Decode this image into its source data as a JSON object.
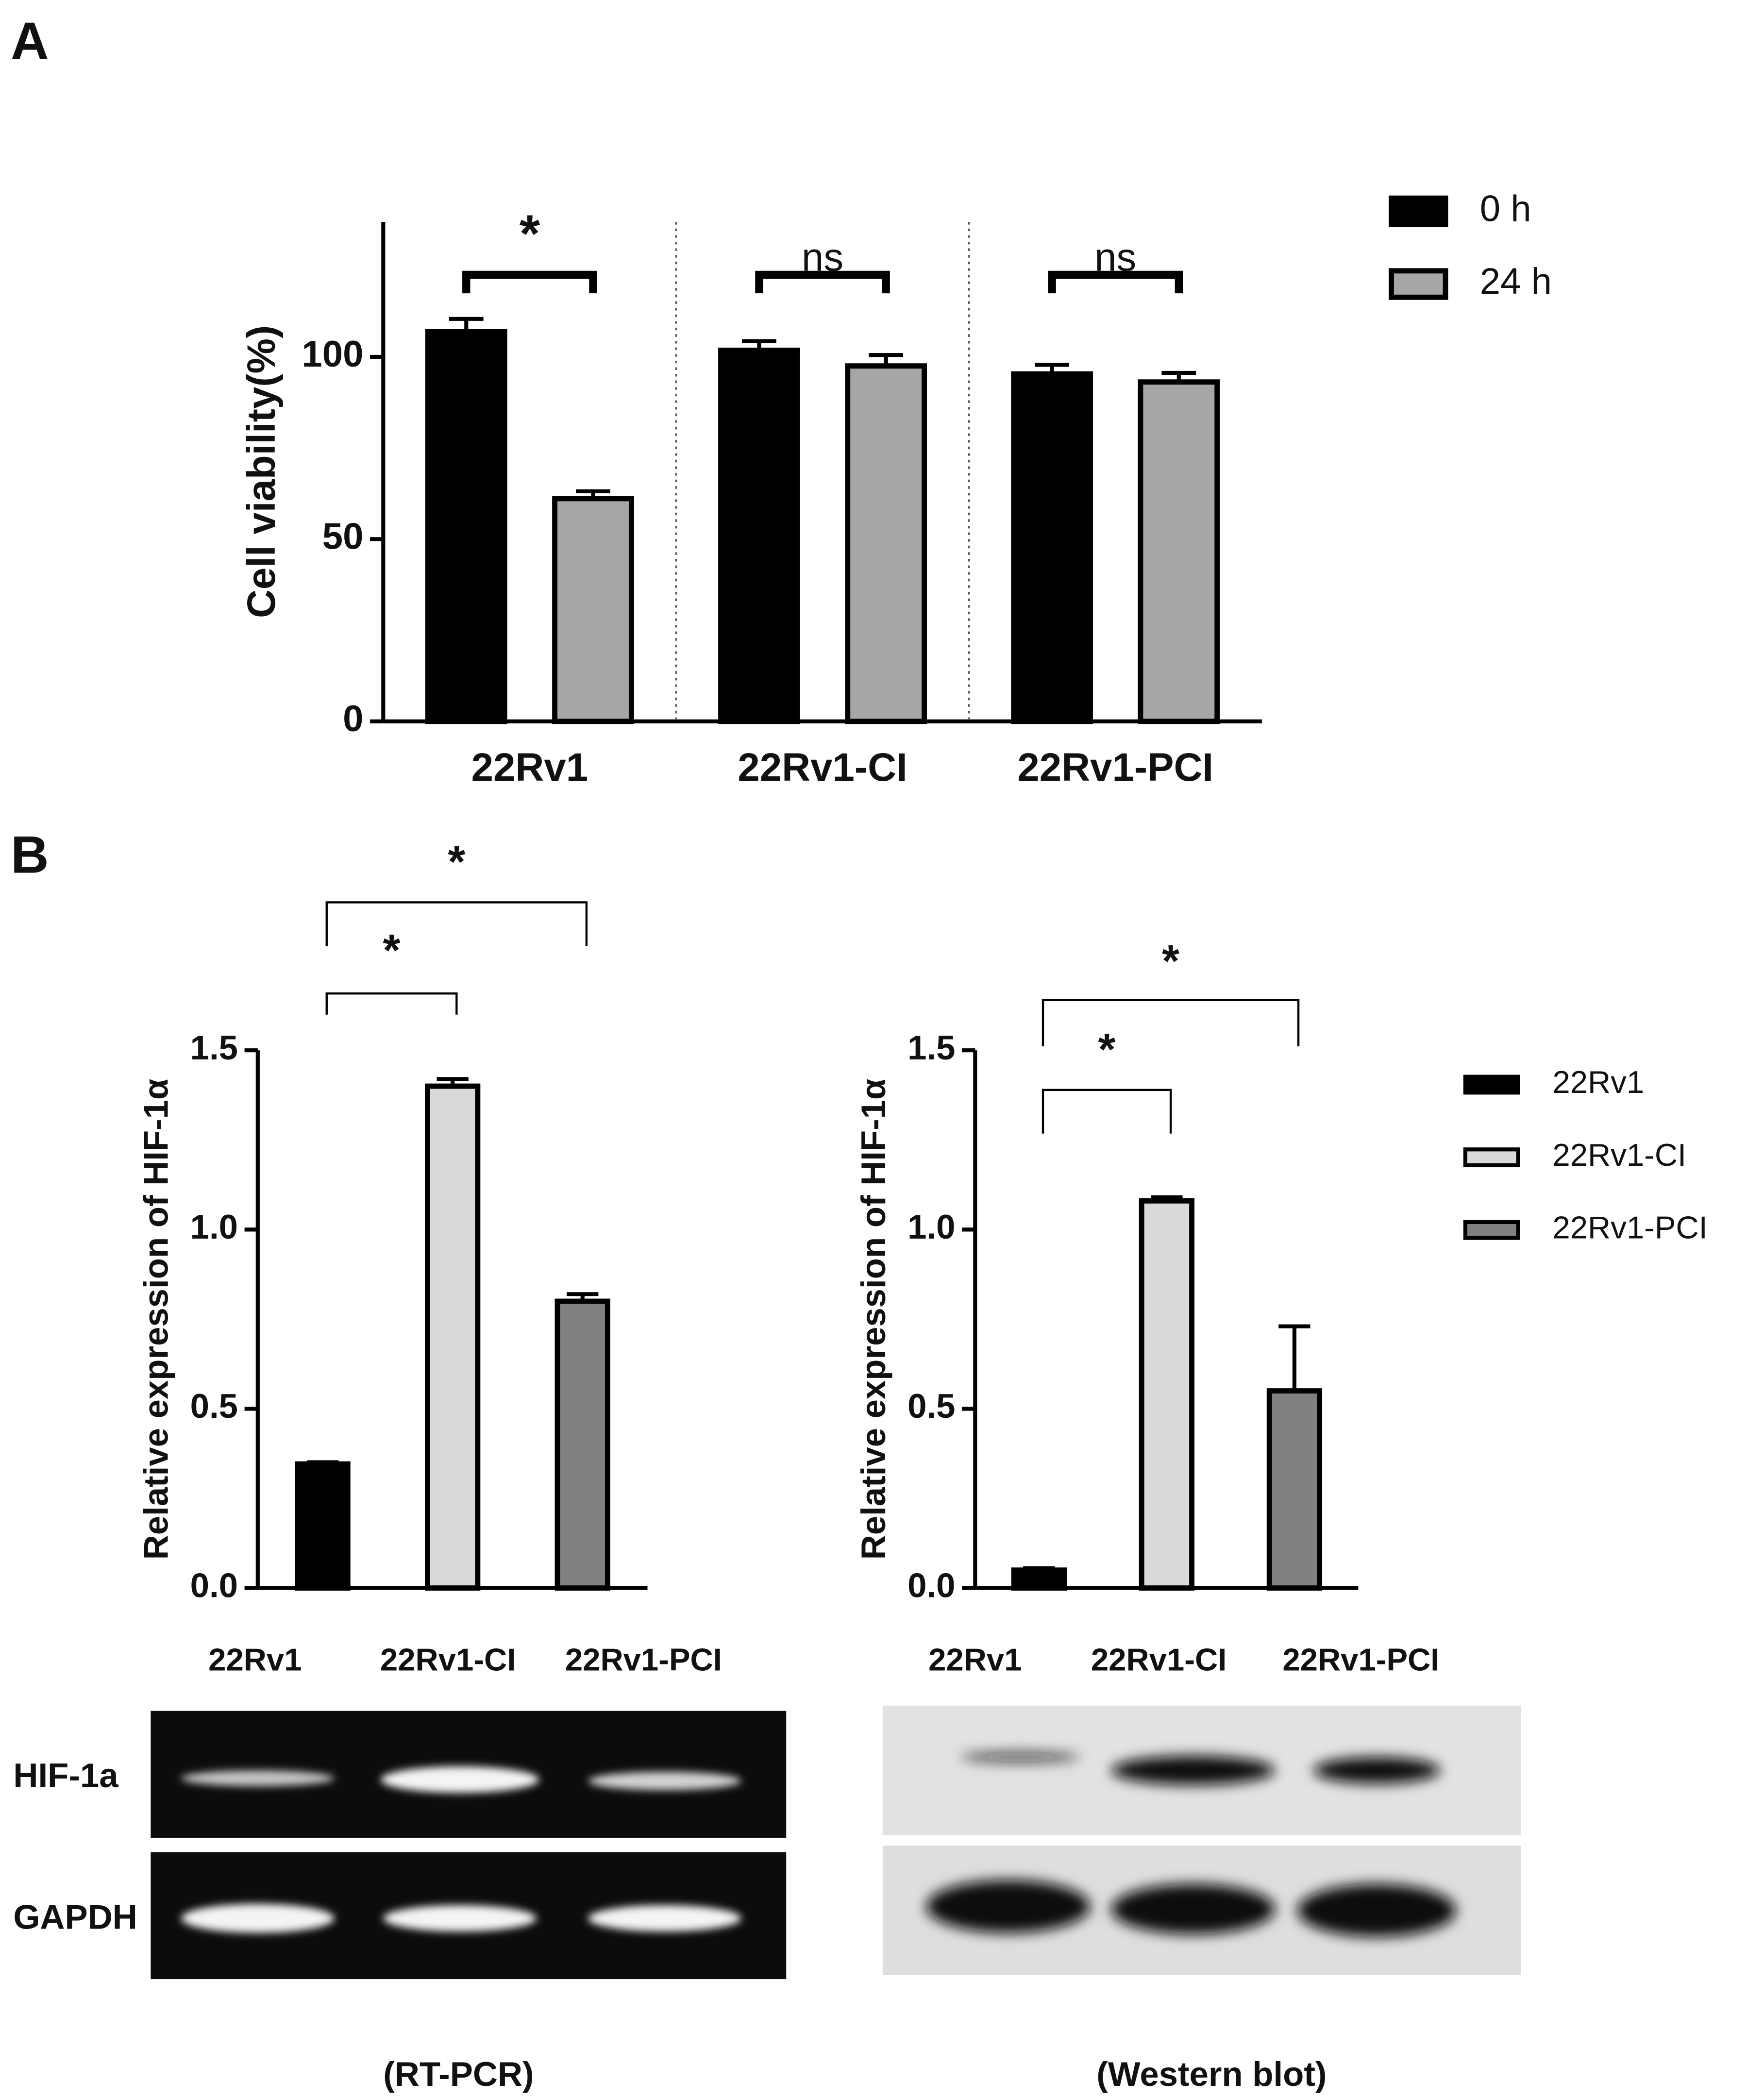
{
  "panel_labels": [
    "A",
    "B"
  ],
  "chart_data": [
    {
      "type": "bar",
      "ylabel": "Cell viability(%)",
      "categories": [
        "22Rv1",
        "22Rv1-CI",
        "22Rv1-PCI"
      ],
      "series": [
        {
          "name": "0 h",
          "color": "#000000",
          "values": [
            106.9,
            101.8,
            95.3
          ],
          "errors": [
            3.5,
            2.5,
            2.5
          ]
        },
        {
          "name": "24 h",
          "color": "#a6a6a8",
          "values": [
            61.1,
            97.5,
            93.1
          ],
          "errors": [
            2,
            3,
            2.5
          ]
        }
      ],
      "ylim": [
        0,
        137
      ],
      "yticks": [
        0,
        50,
        100
      ],
      "annotations": [
        "*",
        "ns",
        "ns"
      ],
      "legend": "upper right"
    },
    {
      "type": "bar",
      "ylabel": "Relative expression of HIF-1α",
      "categories": [
        "22Rv1",
        "22Rv1-CI",
        "22Rv1-PCI"
      ],
      "values": [
        0.346,
        1.4,
        0.8
      ],
      "errors": [
        0.005,
        0.02,
        0.02
      ],
      "colors": [
        "#000000",
        "#d9d9d9",
        "#808080"
      ],
      "ylim": [
        0,
        1.5
      ],
      "yticks": [
        {
          "value": 0,
          "label": "0.0"
        },
        0.5,
        {
          "value": 1,
          "label": "1.0"
        },
        1.5
      ],
      "annotations": [
        "*",
        "*"
      ]
    },
    {
      "type": "bar",
      "ylabel": "Relative expression of HIF-1α",
      "categories": [
        "22Rv1",
        "22Rv1-CI",
        "22Rv1-PCI"
      ],
      "values": [
        0.05,
        1.08,
        0.55
      ],
      "errors": [
        0.005,
        0.01,
        0.18
      ],
      "colors": [
        "#000000",
        "#d9d9d9",
        "#808080"
      ],
      "ylim": [
        0,
        1.5
      ],
      "yticks": [
        {
          "value": 0,
          "label": "0.0"
        },
        0.5,
        {
          "value": 1,
          "label": "1.0"
        },
        1.5
      ],
      "annotations": [
        "*",
        "*"
      ],
      "legend": "right"
    }
  ],
  "blots": [
    {
      "caption": "(RT-PCR)",
      "rows": [
        "HIF-1a",
        "GAPDH"
      ]
    },
    {
      "caption": "(Western blot)"
    }
  ]
}
